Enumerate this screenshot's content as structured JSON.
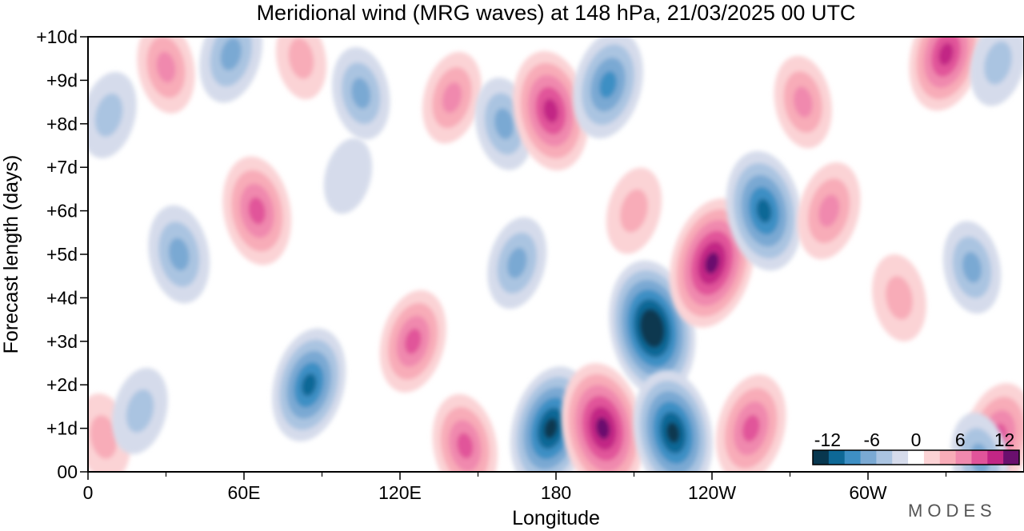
{
  "chart_data": {
    "type": "heatmap",
    "title": "Meridional wind (MRG waves) at  148 hPa,  21/03/2025  00 UTC",
    "xlabel": "Longitude",
    "ylabel": "Forecast length (days)",
    "x_ticks": [
      "0",
      "60E",
      "120E",
      "180",
      "120W",
      "60W"
    ],
    "x_tick_values": [
      0,
      60,
      120,
      180,
      240,
      300
    ],
    "y_ticks": [
      "00",
      "+1d",
      "+2d",
      "+3d",
      "+4d",
      "+5d",
      "+6d",
      "+7d",
      "+8d",
      "+9d",
      "+10d"
    ],
    "y_tick_values": [
      0,
      1,
      2,
      3,
      4,
      5,
      6,
      7,
      8,
      9,
      10
    ],
    "xlim": [
      0,
      360
    ],
    "ylim": [
      0,
      10
    ],
    "colorbar": {
      "tick_labels": [
        "-12",
        "-6",
        "0",
        "6",
        "12"
      ],
      "tick_values": [
        -12,
        -6,
        0,
        6,
        12
      ],
      "levels": [
        -14,
        -12,
        -10,
        -8,
        -6,
        -4,
        -2,
        2,
        4,
        6,
        8,
        10,
        12,
        14
      ],
      "colors": [
        "#08374f",
        "#0e6896",
        "#3e8fc4",
        "#7aa9d3",
        "#aac4e1",
        "#d5dbeb",
        "#ffffff",
        "#fbd3d5",
        "#f8acb8",
        "#f089ae",
        "#e1549a",
        "#c22685",
        "#6a0f6e"
      ]
    },
    "features": [
      {
        "lon": 6,
        "day": 0.8,
        "value": 5
      },
      {
        "lon": 8,
        "day": 8.2,
        "value": -5
      },
      {
        "lon": 30,
        "day": 9.3,
        "value": 6
      },
      {
        "lon": 55,
        "day": 9.6,
        "value": -7
      },
      {
        "lon": 35,
        "day": 5.0,
        "value": -7
      },
      {
        "lon": 20,
        "day": 1.4,
        "value": -5
      },
      {
        "lon": 65,
        "day": 6.0,
        "value": 9
      },
      {
        "lon": 85,
        "day": 2.0,
        "value": -10
      },
      {
        "lon": 82,
        "day": 9.5,
        "value": 4
      },
      {
        "lon": 100,
        "day": 6.8,
        "value": -3
      },
      {
        "lon": 105,
        "day": 8.7,
        "value": -6
      },
      {
        "lon": 125,
        "day": 3.0,
        "value": 8
      },
      {
        "lon": 145,
        "day": 0.6,
        "value": 8
      },
      {
        "lon": 140,
        "day": 8.6,
        "value": 6
      },
      {
        "lon": 160,
        "day": 8.0,
        "value": -6
      },
      {
        "lon": 165,
        "day": 4.8,
        "value": -6
      },
      {
        "lon": 178,
        "day": 8.3,
        "value": 11
      },
      {
        "lon": 178,
        "day": 1.0,
        "value": -12
      },
      {
        "lon": 198,
        "day": 1.0,
        "value": 13
      },
      {
        "lon": 200,
        "day": 8.9,
        "value": -9
      },
      {
        "lon": 217,
        "day": 3.3,
        "value": -14
      },
      {
        "lon": 210,
        "day": 6.0,
        "value": 5
      },
      {
        "lon": 225,
        "day": 0.9,
        "value": -12
      },
      {
        "lon": 240,
        "day": 4.8,
        "value": 13
      },
      {
        "lon": 260,
        "day": 6.0,
        "value": -11
      },
      {
        "lon": 255,
        "day": 1.0,
        "value": 9
      },
      {
        "lon": 275,
        "day": 8.5,
        "value": 6
      },
      {
        "lon": 285,
        "day": 6.0,
        "value": 7
      },
      {
        "lon": 312,
        "day": 4.0,
        "value": 5
      },
      {
        "lon": 330,
        "day": 9.6,
        "value": 10
      },
      {
        "lon": 340,
        "day": 4.7,
        "value": -6
      },
      {
        "lon": 350,
        "day": 0.8,
        "value": 9
      },
      {
        "lon": 343,
        "day": 0.3,
        "value": -6
      },
      {
        "lon": 350,
        "day": 9.4,
        "value": -5
      }
    ],
    "grid": false,
    "legend": "colorbar-bottom-right"
  },
  "brand": "MODES"
}
